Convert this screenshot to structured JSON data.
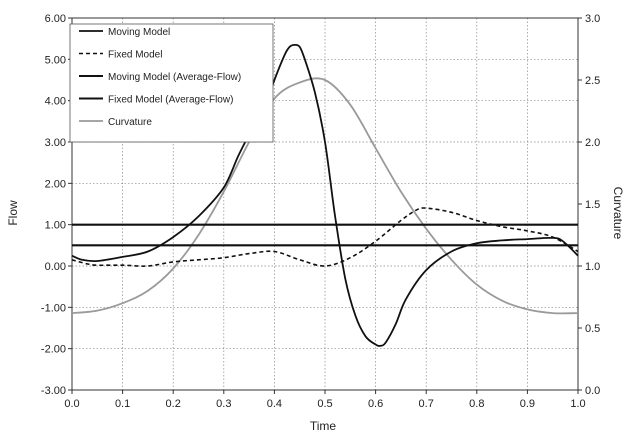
{
  "chart_data": {
    "type": "line",
    "title": "",
    "xlabel": "Time",
    "ylabel": "Flow",
    "y2label": "Curvature",
    "xlim": [
      0.0,
      1.0
    ],
    "ylim": [
      -3.0,
      6.0
    ],
    "y2lim": [
      0.0,
      3.0
    ],
    "x_ticks": [
      "0.0",
      "0.1",
      "0.2",
      "0.3",
      "0.4",
      "0.5",
      "0.6",
      "0.7",
      "0.8",
      "0.9",
      "1.0"
    ],
    "y_ticks": [
      "-3.00",
      "-2.00",
      "-1.00",
      "0.00",
      "1.00",
      "2.00",
      "3.00",
      "4.00",
      "5.00",
      "6.00"
    ],
    "y2_ticks": [
      "0.0",
      "0.5",
      "1.0",
      "1.5",
      "2.0",
      "2.5",
      "3.0"
    ],
    "grid": "dotted",
    "legend_position": "top-left",
    "series": [
      {
        "name": "Moving Model",
        "axis": "left",
        "style": "solid-black",
        "x": [
          0.0,
          0.02,
          0.05,
          0.1,
          0.15,
          0.2,
          0.25,
          0.3,
          0.33,
          0.36,
          0.38,
          0.4,
          0.42,
          0.43,
          0.44,
          0.45,
          0.46,
          0.48,
          0.5,
          0.52,
          0.54,
          0.56,
          0.58,
          0.6,
          0.61,
          0.62,
          0.64,
          0.66,
          0.7,
          0.75,
          0.8,
          0.85,
          0.9,
          0.95,
          0.97,
          1.0
        ],
        "y": [
          0.25,
          0.15,
          0.12,
          0.22,
          0.35,
          0.7,
          1.2,
          1.9,
          2.7,
          3.4,
          3.8,
          4.5,
          5.1,
          5.3,
          5.35,
          5.3,
          5.0,
          4.2,
          3.0,
          1.2,
          -0.3,
          -1.2,
          -1.7,
          -1.9,
          -1.93,
          -1.85,
          -1.4,
          -0.8,
          -0.1,
          0.35,
          0.55,
          0.62,
          0.65,
          0.68,
          0.6,
          0.25
        ]
      },
      {
        "name": "Fixed Model",
        "axis": "left",
        "style": "dashed-black",
        "x": [
          0.0,
          0.03,
          0.05,
          0.1,
          0.15,
          0.2,
          0.25,
          0.3,
          0.35,
          0.4,
          0.45,
          0.5,
          0.55,
          0.6,
          0.65,
          0.68,
          0.7,
          0.75,
          0.8,
          0.85,
          0.9,
          0.95,
          1.0
        ],
        "y": [
          0.15,
          0.05,
          0.02,
          0.02,
          0.0,
          0.1,
          0.15,
          0.2,
          0.3,
          0.35,
          0.15,
          0.0,
          0.2,
          0.6,
          1.1,
          1.35,
          1.4,
          1.3,
          1.1,
          0.95,
          0.85,
          0.7,
          0.35
        ]
      },
      {
        "name": "Moving Model (Average-Flow)",
        "axis": "left",
        "style": "solid-black-thick",
        "x": [
          0.0,
          1.0
        ],
        "y": [
          1.0,
          1.0
        ]
      },
      {
        "name": "Fixed Model (Average-Flow)",
        "axis": "left",
        "style": "solid-black-thick",
        "x": [
          0.0,
          1.0
        ],
        "y": [
          0.5,
          0.5
        ]
      },
      {
        "name": "Curvature",
        "axis": "right",
        "style": "solid-gray",
        "x": [
          0.0,
          0.05,
          0.1,
          0.15,
          0.2,
          0.25,
          0.3,
          0.35,
          0.4,
          0.45,
          0.5,
          0.55,
          0.6,
          0.65,
          0.7,
          0.75,
          0.8,
          0.85,
          0.9,
          0.95,
          1.0
        ],
        "y": [
          0.62,
          0.64,
          0.7,
          0.8,
          0.98,
          1.25,
          1.6,
          2.0,
          2.35,
          2.48,
          2.5,
          2.3,
          1.95,
          1.6,
          1.3,
          1.05,
          0.85,
          0.72,
          0.65,
          0.62,
          0.62
        ]
      }
    ]
  },
  "colors": {
    "axis": "#333333",
    "grid": "#888888",
    "black_series": "#111111",
    "curvature": "#9a9a9a"
  }
}
